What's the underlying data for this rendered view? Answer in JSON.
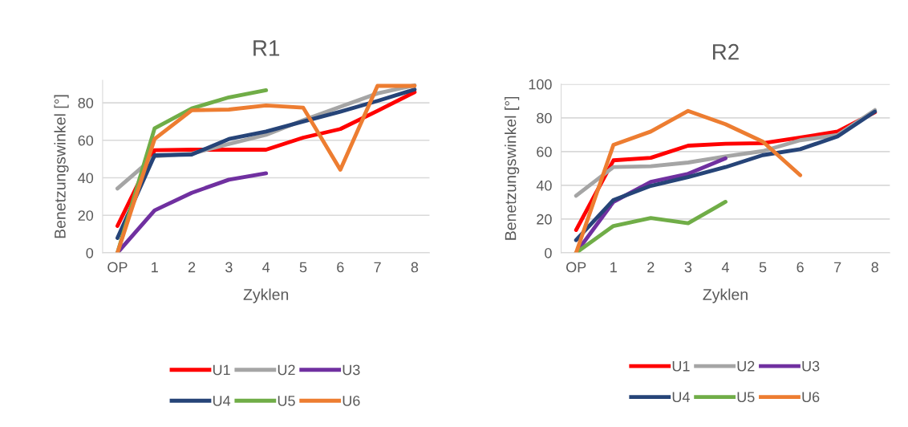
{
  "chart_data": [
    {
      "type": "line",
      "title": "R1",
      "xlabel": "Zyklen",
      "ylabel": "Benetzungswinkel [°]",
      "categories": [
        "OP",
        "1",
        "2",
        "3",
        "4",
        "5",
        "6",
        "7",
        "8"
      ],
      "ylim": [
        0,
        92
      ],
      "yticks": [
        0,
        20,
        40,
        60,
        80
      ],
      "grid": "y",
      "legend": "bottom",
      "marker": "none",
      "line_style": "solid",
      "series": [
        {
          "name": "U1",
          "color": "#ff0000",
          "values": [
            14.3,
            54.7,
            55,
            55,
            55,
            61.4,
            66,
            75.7,
            85.7
          ]
        },
        {
          "name": "U2",
          "color": "#a5a5a5",
          "values": [
            34.3,
            51.4,
            52.9,
            58,
            62.9,
            70.7,
            77.9,
            85,
            89.3
          ]
        },
        {
          "name": "U3",
          "color": "#7030a0",
          "values": [
            0,
            22.6,
            32,
            39,
            42.4,
            null,
            null,
            null,
            null
          ]
        },
        {
          "name": "U4",
          "color": "#264478",
          "values": [
            7.9,
            52,
            52.4,
            60.7,
            64.7,
            70,
            75.3,
            81,
            87.1
          ]
        },
        {
          "name": "U5",
          "color": "#70ad47",
          "values": [
            0,
            66.4,
            77,
            82.9,
            86.7,
            null,
            null,
            null,
            null
          ]
        },
        {
          "name": "U6",
          "color": "#ed7d31",
          "values": [
            0,
            60.7,
            76,
            76.4,
            78.6,
            77.4,
            44.3,
            89,
            89
          ]
        }
      ]
    },
    {
      "type": "line",
      "title": "R2",
      "xlabel": "Zyklen",
      "ylabel": "Benetzungswinkel [°]",
      "categories": [
        "OP",
        "1",
        "2",
        "3",
        "4",
        "5",
        "6",
        "7",
        "8"
      ],
      "ylim": [
        0,
        100
      ],
      "yticks": [
        0,
        20,
        40,
        60,
        80,
        100
      ],
      "grid": "y",
      "legend": "bottom",
      "marker": "none",
      "line_style": "solid",
      "series": [
        {
          "name": "U1",
          "color": "#ff0000",
          "values": [
            13.5,
            54.8,
            56.3,
            63.5,
            64.6,
            65,
            68.3,
            71.9,
            83.3
          ]
        },
        {
          "name": "U2",
          "color": "#a5a5a5",
          "values": [
            33.8,
            50.8,
            51.3,
            53.5,
            57.1,
            60.3,
            66.7,
            69.8,
            84.6
          ]
        },
        {
          "name": "U3",
          "color": "#7030a0",
          "values": [
            0,
            30.2,
            42,
            46.8,
            56,
            null,
            null,
            null,
            null
          ]
        },
        {
          "name": "U4",
          "color": "#264478",
          "values": [
            7.5,
            31.3,
            39.7,
            44.9,
            50.8,
            57.9,
            61.4,
            69,
            83.7
          ]
        },
        {
          "name": "U5",
          "color": "#70ad47",
          "values": [
            0,
            15.9,
            20.6,
            17.5,
            30.2,
            null,
            null,
            null,
            null
          ]
        },
        {
          "name": "U6",
          "color": "#ed7d31",
          "values": [
            0,
            64,
            71.9,
            84.1,
            76.2,
            65.9,
            46,
            null,
            null
          ]
        }
      ]
    }
  ]
}
